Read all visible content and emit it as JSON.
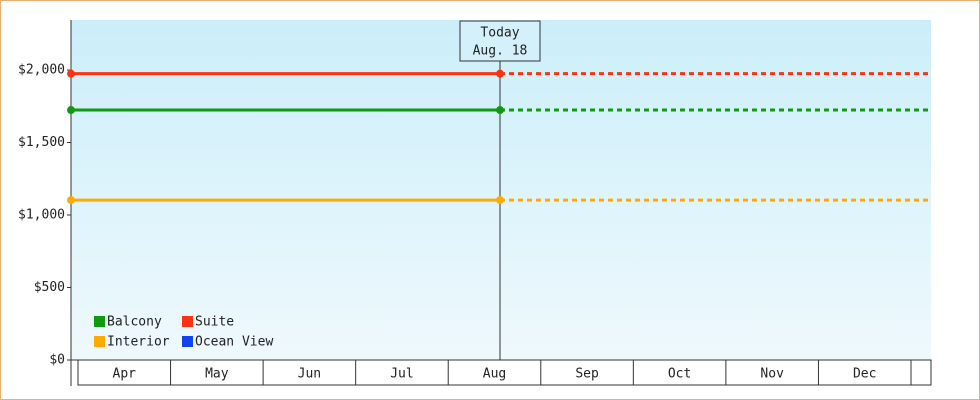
{
  "chart_data": {
    "type": "line",
    "categories": [
      "Apr",
      "May",
      "Jun",
      "Jul",
      "Aug",
      "Sep",
      "Oct",
      "Nov",
      "Dec"
    ],
    "series": [
      {
        "name": "Balcony",
        "color": "#119911",
        "value": 1724
      },
      {
        "name": "Suite",
        "color": "#ff3311",
        "value": 1975
      },
      {
        "name": "Interior",
        "color": "#ffaa00",
        "value": 1103
      },
      {
        "name": "Ocean View",
        "color": "#1144ee",
        "value": null
      }
    ],
    "annotation": [
      "Today",
      "Aug. 18"
    ],
    "ylim": [
      0,
      2345
    ],
    "yticks": [
      {
        "value": 0,
        "label": "$0"
      },
      {
        "value": 500,
        "label": "$500"
      },
      {
        "value": 1000,
        "label": "$1,000"
      },
      {
        "value": 1500,
        "label": "$1,500"
      },
      {
        "value": 2000,
        "label": "$2,000"
      }
    ]
  }
}
